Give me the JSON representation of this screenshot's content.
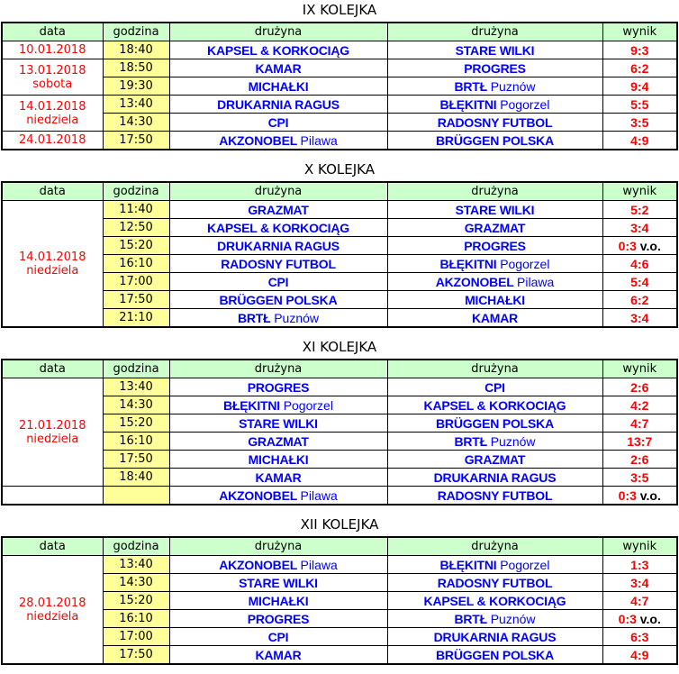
{
  "columns": [
    "data",
    "godzina",
    "drużyna",
    "drużyna",
    "wynik"
  ],
  "colors": {
    "header_bg": "#ccffcc",
    "time_bg": "#ffff99",
    "date_text": "#ff0000",
    "team_text": "#0000ff",
    "score_text": "#ff0000",
    "walkover_text": "#000000",
    "border": "#000000"
  },
  "rounds": [
    {
      "title": "IX KOLEJKA",
      "rows": [
        {
          "date": "10.01.2018",
          "day": "",
          "time": "18:40",
          "home": "KAPSEL & KORKOCIĄG",
          "home_sub": "",
          "away": "STARE WILKI",
          "away_sub": "",
          "score": "9:3",
          "score_note": ""
        },
        {
          "date": "13.01.2018",
          "day": "sobota",
          "time": "18:50",
          "home": "KAMAR",
          "home_sub": "",
          "away": "PROGRES",
          "away_sub": "",
          "score": "6:2",
          "score_note": ""
        },
        {
          "time": "19:30",
          "home": "MICHAŁKI",
          "home_sub": "",
          "away": "BRTŁ",
          "away_sub": "Puznów",
          "score": "9:4",
          "score_note": ""
        },
        {
          "date": "14.01.2018",
          "day": "niedziela",
          "time": "13:40",
          "home": "DRUKARNIA RAGUS",
          "home_sub": "",
          "away": "BŁĘKITNI",
          "away_sub": "Pogorzel",
          "score": "5:5",
          "score_note": ""
        },
        {
          "time": "14:30",
          "home": "CPI",
          "home_sub": "",
          "away": "RADOSNY FUTBOL",
          "away_sub": "",
          "score": "3:5",
          "score_note": ""
        },
        {
          "date": "24.01.2018",
          "day": "",
          "time": "17:50",
          "home": "AKZONOBEL",
          "home_sub": "Pilawa",
          "away": "BRÜGGEN POLSKA",
          "away_sub": "",
          "score": "4:9",
          "score_note": ""
        }
      ]
    },
    {
      "title": "X KOLEJKA",
      "rows": [
        {
          "date": "14.01.2018",
          "day": "niedziela",
          "time": "11:40",
          "home": "GRAZMAT",
          "home_sub": "",
          "away": "STARE WILKI",
          "away_sub": "",
          "score": "5:2",
          "score_note": ""
        },
        {
          "time": "12:50",
          "home": "KAPSEL & KORKOCIĄG",
          "home_sub": "",
          "away": "GRAZMAT",
          "away_sub": "",
          "score": "3:4",
          "score_note": ""
        },
        {
          "time": "15:20",
          "home": "DRUKARNIA RAGUS",
          "home_sub": "",
          "away": "PROGRES",
          "away_sub": "",
          "score": "0:3",
          "score_note": "v.o."
        },
        {
          "time": "16:10",
          "home": "RADOSNY FUTBOL",
          "home_sub": "",
          "away": "BŁĘKITNI",
          "away_sub": "Pogorzel",
          "score": "4:6",
          "score_note": ""
        },
        {
          "time": "17:00",
          "home": "CPI",
          "home_sub": "",
          "away": "AKZONOBEL",
          "away_sub": "Pilawa",
          "score": "5:4",
          "score_note": ""
        },
        {
          "time": "17:50",
          "home": "BRÜGGEN POLSKA",
          "home_sub": "",
          "away": "MICHAŁKI",
          "away_sub": "",
          "score": "6:2",
          "score_note": ""
        },
        {
          "time": "21:10",
          "home": "BRTŁ",
          "home_sub": "Puznów",
          "away": "KAMAR",
          "away_sub": "",
          "score": "3:4",
          "score_note": ""
        }
      ]
    },
    {
      "title": "XI KOLEJKA",
      "rows": [
        {
          "date": "21.01.2018",
          "day": "niedziela",
          "time": "13:40",
          "home": "PROGRES",
          "home_sub": "",
          "away": "CPI",
          "away_sub": "",
          "score": "2:6",
          "score_note": ""
        },
        {
          "time": "14:30",
          "home": "BŁĘKITNI",
          "home_sub": "Pogorzel",
          "away": "KAPSEL & KORKOCIĄG",
          "away_sub": "",
          "score": "4:2",
          "score_note": ""
        },
        {
          "time": "15:20",
          "home": "STARE WILKI",
          "home_sub": "",
          "away": "BRÜGGEN POLSKA",
          "away_sub": "",
          "score": "4:7",
          "score_note": ""
        },
        {
          "time": "16:10",
          "home": "GRAZMAT",
          "home_sub": "",
          "away": "BRTŁ",
          "away_sub": "Puznów",
          "score": "13:7",
          "score_note": ""
        },
        {
          "time": "17:50",
          "home": "MICHAŁKI",
          "home_sub": "",
          "away": "GRAZMAT",
          "away_sub": "",
          "score": "2:6",
          "score_note": ""
        },
        {
          "time": "18:40",
          "home": "KAMAR",
          "home_sub": "",
          "away": "DRUKARNIA RAGUS",
          "away_sub": "",
          "score": "3:5",
          "score_note": ""
        },
        {
          "date": "",
          "day": "",
          "time": "",
          "home": "AKZONOBEL",
          "home_sub": "Pilawa",
          "away": "RADOSNY FUTBOL",
          "away_sub": "",
          "score": "0:3",
          "score_note": "v.o."
        }
      ]
    },
    {
      "title": "XII KOLEJKA",
      "rows": [
        {
          "date": "28.01.2018",
          "day": "niedziela",
          "time": "13:40",
          "home": "AKZONOBEL",
          "home_sub": "Pilawa",
          "away": "BŁĘKITNI",
          "away_sub": "Pogorzel",
          "score": "1:3",
          "score_note": ""
        },
        {
          "time": "14:30",
          "home": "STARE WILKI",
          "home_sub": "",
          "away": "RADOSNY FUTBOL",
          "away_sub": "",
          "score": "3:4",
          "score_note": ""
        },
        {
          "time": "15:20",
          "home": "MICHAŁKI",
          "home_sub": "",
          "away": "KAPSEL & KORKOCIĄG",
          "away_sub": "",
          "score": "4:7",
          "score_note": ""
        },
        {
          "time": "16:10",
          "home": "PROGRES",
          "home_sub": "",
          "away": "BRTŁ",
          "away_sub": "Puznów",
          "score": "0:3",
          "score_note": "v.o."
        },
        {
          "time": "17:00",
          "home": "CPI",
          "home_sub": "",
          "away": "DRUKARNIA RAGUS",
          "away_sub": "",
          "score": "6:3",
          "score_note": ""
        },
        {
          "time": "17:50",
          "home": "KAMAR",
          "home_sub": "",
          "away": "BRÜGGEN POLSKA",
          "away_sub": "",
          "score": "4:9",
          "score_note": ""
        }
      ]
    }
  ]
}
